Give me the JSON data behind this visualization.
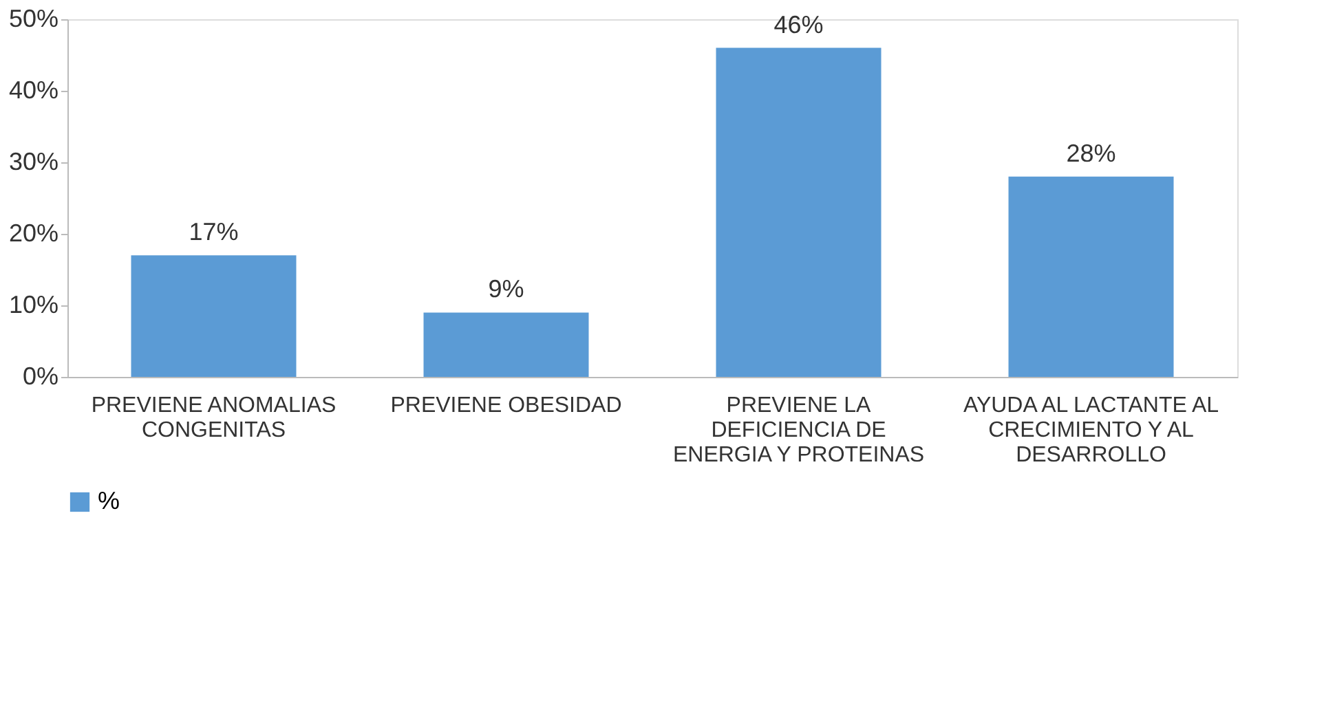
{
  "chart_data": {
    "type": "bar",
    "categories": [
      "PREVIENE ANOMALIAS CONGENITAS",
      "PREVIENE OBESIDAD",
      "PREVIENE LA DEFICIENCIA DE ENERGIA Y PROTEINAS",
      "AYUDA AL LACTANTE AL CRECIMIENTO Y AL DESARROLLO"
    ],
    "series": [
      {
        "name": "%",
        "color": "#5b9bd5",
        "values": [
          17,
          9,
          46,
          28
        ],
        "value_labels": [
          "17%",
          "9%",
          "46%",
          "28%"
        ]
      }
    ],
    "ylim": [
      0,
      50
    ],
    "yticks": [
      {
        "value": 0,
        "label": "0%"
      },
      {
        "value": 10,
        "label": "10%"
      },
      {
        "value": 20,
        "label": "20%"
      },
      {
        "value": 30,
        "label": "30%"
      },
      {
        "value": 40,
        "label": "40%"
      },
      {
        "value": 50,
        "label": "50%"
      }
    ],
    "grid": false,
    "legend": "bottom"
  }
}
